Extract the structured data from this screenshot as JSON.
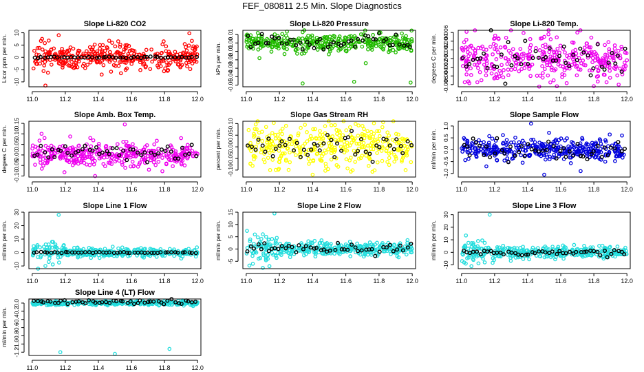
{
  "page_title": "FEF_080811  2.5 Min. Slope Diagnostics",
  "series_colors": {
    "raw": "varies by panel",
    "averaged": "#000000"
  },
  "chart_data": [
    {
      "type": "scatter",
      "title": "Slope Li-820 CO2",
      "ylabel": "Licor ppm per min.",
      "xlim": [
        10.98,
        12.02
      ],
      "xticks": [
        "11.0",
        "11.2",
        "11.4",
        "11.6",
        "11.8",
        "12.0"
      ],
      "ylim": [
        -12,
        11
      ],
      "yticks": [
        -10,
        -5,
        0,
        5,
        10
      ],
      "ytick_labels": [
        "-10",
        "-5",
        "0",
        "5",
        "10"
      ],
      "color": "#ff0000",
      "noise": 2.5,
      "outliers": [
        [
          11.06,
          7.5
        ],
        [
          11.08,
          -11.5
        ],
        [
          11.16,
          9
        ],
        [
          11.95,
          9.8
        ],
        [
          11.42,
          -7
        ],
        [
          11.52,
          6.5
        ]
      ],
      "avg_noise": 0.15,
      "avg_offset": 0
    },
    {
      "type": "scatter",
      "title": "Slope Li-820 Pressure",
      "ylabel": "kPa per min.",
      "xlim": [
        10.98,
        12.02
      ],
      "xticks": [
        "11.0",
        "11.2",
        "11.4",
        "11.6",
        "11.8",
        "12.0"
      ],
      "ylim": [
        -0.052,
        0.015
      ],
      "yticks": [
        -0.05,
        -0.04,
        -0.03,
        -0.02,
        -0.01,
        0.0,
        0.01
      ],
      "ytick_labels": [
        "-0.05",
        "-0.04",
        "-0.03",
        "-0.02",
        "-0.01",
        "0.00",
        "0.01"
      ],
      "color": "#22bb00",
      "noise": 0.005,
      "outliers": [
        [
          11.34,
          -0.048
        ],
        [
          11.65,
          -0.046
        ],
        [
          11.99,
          -0.047
        ],
        [
          11.08,
          -0.018
        ],
        [
          11.72,
          -0.024
        ]
      ],
      "avg_noise": 0.004,
      "avg_offset": 0.001
    },
    {
      "type": "scatter",
      "title": "Slope Li-820 Temp.",
      "ylabel": "degrees C per min.",
      "xlim": [
        10.98,
        12.02
      ],
      "xticks": [
        "11.0",
        "11.2",
        "11.4",
        "11.6",
        "11.8",
        "12.0"
      ],
      "ylim": [
        -0.0065,
        0.0065
      ],
      "yticks": [
        -0.006,
        -0.004,
        -0.002,
        0.0,
        0.002,
        0.004,
        0.006
      ],
      "ytick_labels": [
        "-0.006",
        "-0.004",
        "-0.002",
        "0.000",
        "0.002",
        "0.004",
        "0.006"
      ],
      "color": "#ee00ee",
      "noise": 0.0025,
      "outliers": [
        [
          11.7,
          0.006
        ],
        [
          11.12,
          -0.005
        ],
        [
          11.95,
          -0.006
        ],
        [
          11.5,
          0.005
        ]
      ],
      "avg_noise": 0.002,
      "avg_offset": 0
    },
    {
      "type": "scatter",
      "title": "Slope Amb. Box Temp.",
      "ylabel": "degees C per min.",
      "xlim": [
        10.98,
        12.02
      ],
      "xticks": [
        "11.0",
        "11.2",
        "11.4",
        "11.6",
        "11.8",
        "12.0"
      ],
      "ylim": [
        -0.105,
        0.16
      ],
      "yticks": [
        -0.1,
        -0.05,
        0.0,
        0.05,
        0.1,
        0.15
      ],
      "ytick_labels": [
        "-0.10",
        "-0.05",
        "0.00",
        "0.05",
        "0.10",
        "0.15"
      ],
      "color": "#ee00ee",
      "noise": 0.03,
      "outliers": [
        [
          11.56,
          0.145
        ],
        [
          11.38,
          -0.1
        ],
        [
          11.9,
          0.08
        ]
      ],
      "avg_noise": 0.025,
      "avg_offset": 0.01
    },
    {
      "type": "scatter",
      "title": "Slope Gas Stream RH",
      "ylabel": "percent per min.",
      "xlim": [
        10.98,
        12.02
      ],
      "xticks": [
        "11.0",
        "11.2",
        "11.4",
        "11.6",
        "11.8",
        "12.0"
      ],
      "ylim": [
        -0.13,
        0.11
      ],
      "yticks": [
        -0.1,
        -0.05,
        0.0,
        0.05,
        0.1
      ],
      "ytick_labels": [
        "-0.10",
        "-0.05",
        "0.00",
        "0.05",
        "0.10"
      ],
      "color": "#ffff00",
      "noise": 0.045,
      "outliers": [
        [
          11.4,
          -0.12
        ],
        [
          11.7,
          0.09
        ],
        [
          11.96,
          -0.1
        ]
      ],
      "avg_noise": 0.03,
      "avg_offset": 0.005
    },
    {
      "type": "scatter",
      "title": "Slope Sample Flow",
      "ylabel": "ml/min per min.",
      "xlim": [
        10.98,
        12.02
      ],
      "xticks": [
        "11.0",
        "11.2",
        "11.4",
        "11.6",
        "11.8",
        "12.0"
      ],
      "ylim": [
        -1.15,
        1.2
      ],
      "yticks": [
        -1.0,
        -0.5,
        0.0,
        0.5,
        1.0
      ],
      "ytick_labels": [
        "-1.0",
        "-0.5",
        "0.0",
        "0.5",
        "1.0"
      ],
      "color": "#0000dd",
      "noise": 0.22,
      "outliers": [
        [
          11.42,
          1.1
        ],
        [
          11.5,
          -1.05
        ],
        [
          11.72,
          -0.9
        ],
        [
          11.15,
          -0.7
        ],
        [
          11.97,
          0.6
        ]
      ],
      "avg_noise": 0.2,
      "avg_offset": 0
    },
    {
      "type": "scatter",
      "title": "Slope Line 1 Flow",
      "ylabel": "ml/min per min.",
      "xlim": [
        10.98,
        12.02
      ],
      "xticks": [
        "11.0",
        "11.2",
        "11.4",
        "11.6",
        "11.8",
        "12.0"
      ],
      "ylim": [
        -12,
        30
      ],
      "yticks": [
        -10,
        0,
        10,
        20,
        30
      ],
      "ytick_labels": [
        "-10",
        "0",
        "10",
        "20",
        "30"
      ],
      "color": "#22dddd",
      "noise": 1.6,
      "outliers": [
        [
          11.16,
          28
        ],
        [
          11.08,
          -10
        ],
        [
          11.12,
          8
        ],
        [
          11.1,
          -7
        ],
        [
          11.14,
          6
        ]
      ],
      "avg_noise": 0.2,
      "avg_offset": 0
    },
    {
      "type": "scatter",
      "title": "Slope Line 2 Flow",
      "ylabel": "ml/min per min.",
      "xlim": [
        10.98,
        12.02
      ],
      "xticks": [
        "11.0",
        "11.2",
        "11.4",
        "11.6",
        "11.8",
        "12.0"
      ],
      "ylim": [
        -8,
        15
      ],
      "yticks": [
        -5,
        0,
        5,
        10,
        15
      ],
      "ytick_labels": [
        "-5",
        "0",
        "5",
        "10",
        "15"
      ],
      "color": "#22dddd",
      "noise": 1.3,
      "outliers": [
        [
          11.17,
          14.5
        ],
        [
          11.1,
          6
        ],
        [
          11.14,
          -7
        ],
        [
          11.04,
          -6
        ],
        [
          11.12,
          5
        ]
      ],
      "avg_noise": 1.0,
      "avg_offset": 0.3
    },
    {
      "type": "scatter",
      "title": "Slope Line 3 Flow",
      "ylabel": "ml/min per min.",
      "xlim": [
        10.98,
        12.02
      ],
      "xticks": [
        "11.0",
        "11.2",
        "11.4",
        "11.6",
        "11.8",
        "12.0"
      ],
      "ylim": [
        -13,
        32
      ],
      "yticks": [
        -10,
        0,
        10,
        20,
        30
      ],
      "ytick_labels": [
        "-10",
        "0",
        "10",
        "20",
        "30"
      ],
      "color": "#22dddd",
      "noise": 2.2,
      "outliers": [
        [
          11.17,
          30
        ],
        [
          11.06,
          -11
        ],
        [
          11.1,
          9
        ],
        [
          11.14,
          -8
        ]
      ],
      "avg_noise": 1.2,
      "avg_offset": 0
    },
    {
      "type": "scatter",
      "title": "Slope Line 4 (LT) Flow",
      "ylabel": "ml/min per min.",
      "xlim": [
        10.98,
        12.02
      ],
      "xticks": [
        "11.0",
        "11.2",
        "11.4",
        "11.6",
        "11.8",
        "12.0"
      ],
      "ylim": [
        -1.28,
        0.1
      ],
      "yticks": [
        -1.2,
        -1.0,
        -0.8,
        -0.6,
        -0.4,
        -0.2,
        0.0
      ],
      "ytick_labels": [
        "-1.2",
        "-1.0",
        "-0.8",
        "-0.6",
        "-0.4",
        "-0.2",
        "0.0"
      ],
      "color": "#22dddd",
      "noise": 0.025,
      "outliers": [
        [
          11.17,
          -1.2
        ],
        [
          11.5,
          -1.24
        ],
        [
          11.83,
          -1.12
        ]
      ],
      "avg_noise": 0.025,
      "avg_offset": 0.02
    }
  ]
}
